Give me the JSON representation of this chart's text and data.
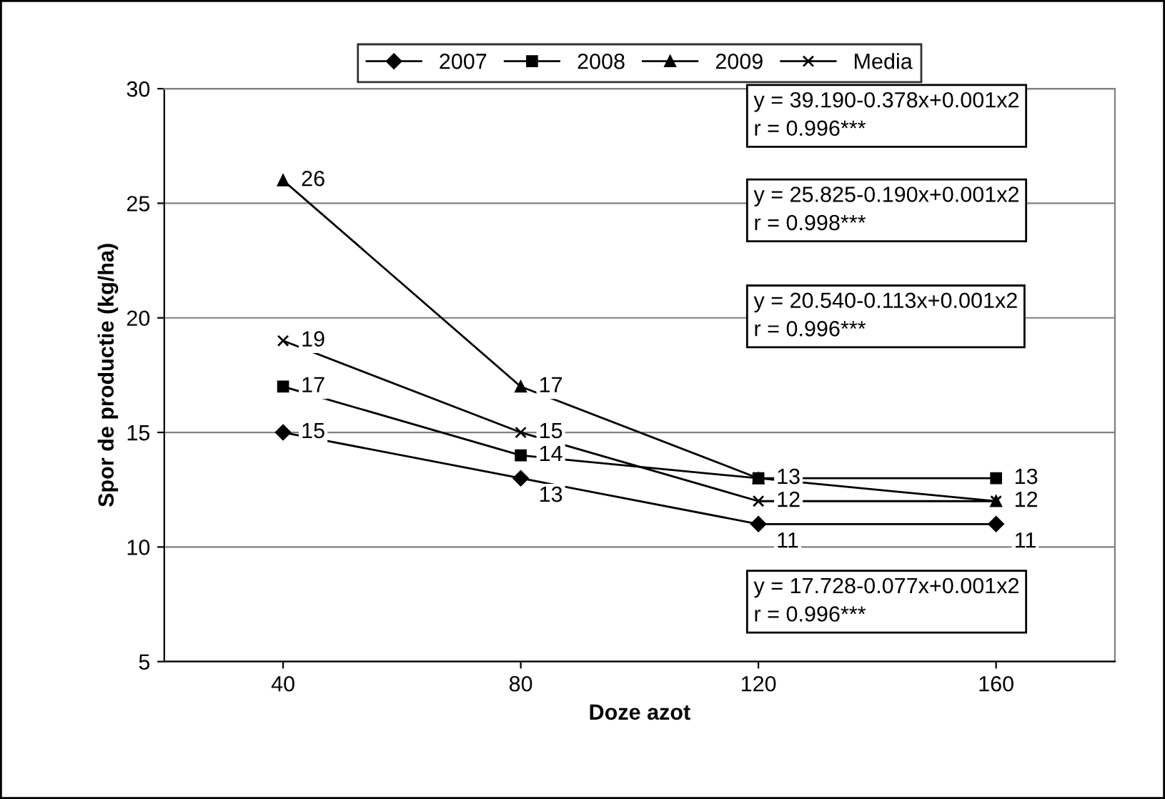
{
  "chart_data": {
    "type": "line",
    "xlabel": "Doze azot",
    "ylabel": "Spor de productie (kg/ha)",
    "categories": [
      "40",
      "80",
      "120",
      "160"
    ],
    "series": [
      {
        "name": "2007",
        "color": "#000000",
        "marker": "diamond",
        "values": [
          15,
          13,
          11,
          11
        ],
        "value_labels": [
          "15",
          "13",
          "11",
          "11"
        ]
      },
      {
        "name": "2008",
        "color": "#000000",
        "marker": "square",
        "values": [
          17,
          14,
          13,
          13
        ],
        "value_labels": [
          "17",
          "14",
          null,
          "13"
        ]
      },
      {
        "name": "2009",
        "color": "#000000",
        "marker": "triangle",
        "values": [
          26,
          17,
          13,
          12
        ],
        "value_labels": [
          "26",
          "17",
          "13",
          "12"
        ]
      },
      {
        "name": "Media",
        "color": "#000000",
        "marker": "cross",
        "values": [
          19,
          15,
          12,
          12
        ],
        "value_labels": [
          "19",
          "15",
          "12",
          null
        ]
      }
    ],
    "ylim": [
      5,
      30
    ],
    "yticks": [
      5,
      10,
      15,
      20,
      25,
      30
    ],
    "grid": "y",
    "legend": "top",
    "line_style": "solid",
    "annotations": [
      "y = 39.190-0.378x+0.001x2\nr = 0.996***",
      "y = 25.825-0.190x+0.001x2\nr = 0.998***",
      "y = 20.540-0.113x+0.001x2\nr = 0.996***",
      "y = 17.728-0.077x+0.001x2\nr = 0.996***"
    ]
  }
}
